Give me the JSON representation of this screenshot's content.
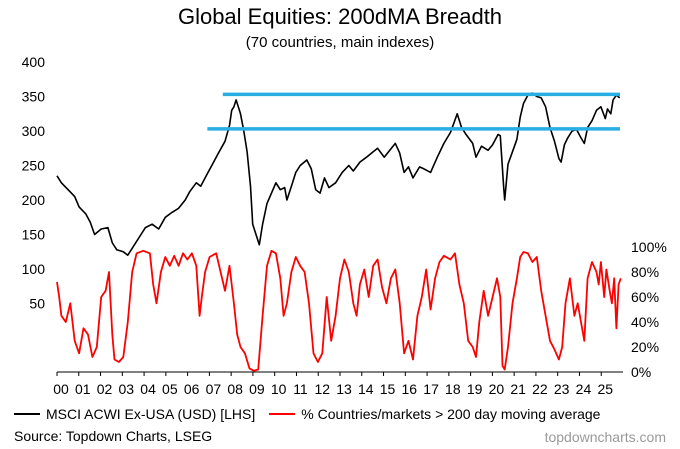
{
  "header": {
    "title": "Global Equities: 200dMA Breadth",
    "subtitle": "(70 countries, main indexes)"
  },
  "footer": {
    "source": "Source: Topdown Charts, LSEG",
    "brand": "topdowncharts.com"
  },
  "colors": {
    "acwi": "#000000",
    "breadth": "#ff0000",
    "bands": "#29aee3"
  },
  "chart_data": {
    "type": "line",
    "title": "Global Equities: 200dMA Breadth",
    "subtitle": "(70 countries, main indexes)",
    "x_ticks": [
      "00",
      "01",
      "02",
      "03",
      "04",
      "05",
      "06",
      "07",
      "08",
      "09",
      "10",
      "11",
      "12",
      "13",
      "14",
      "15",
      "16",
      "17",
      "18",
      "19",
      "20",
      "21",
      "22",
      "23",
      "24",
      "25"
    ],
    "x_range": [
      2000,
      2025.6
    ],
    "y_left": {
      "ticks": [
        "400",
        "350",
        "300",
        "250",
        "200",
        "150",
        "100",
        "50"
      ],
      "range": [
        0,
        400
      ]
    },
    "y_right": {
      "ticks": [
        "100%",
        "80%",
        "60%",
        "40%",
        "20%",
        "0%"
      ],
      "range": [
        0,
        100
      ]
    },
    "series": [
      {
        "name": "MSCI ACWI Ex-USA (USD) [LHS]",
        "axis": "left",
        "color": "#000000",
        "points": [
          [
            2000.0,
            235
          ],
          [
            2000.2,
            225
          ],
          [
            2000.5,
            215
          ],
          [
            2000.8,
            205
          ],
          [
            2001.0,
            190
          ],
          [
            2001.3,
            180
          ],
          [
            2001.5,
            168
          ],
          [
            2001.7,
            150
          ],
          [
            2002.0,
            158
          ],
          [
            2002.3,
            160
          ],
          [
            2002.5,
            138
          ],
          [
            2002.7,
            128
          ],
          [
            2003.0,
            125
          ],
          [
            2003.2,
            120
          ],
          [
            2003.5,
            135
          ],
          [
            2003.8,
            150
          ],
          [
            2004.0,
            160
          ],
          [
            2004.3,
            165
          ],
          [
            2004.6,
            158
          ],
          [
            2004.9,
            175
          ],
          [
            2005.2,
            182
          ],
          [
            2005.5,
            188
          ],
          [
            2005.8,
            200
          ],
          [
            2006.0,
            212
          ],
          [
            2006.3,
            225
          ],
          [
            2006.5,
            220
          ],
          [
            2006.8,
            238
          ],
          [
            2007.0,
            250
          ],
          [
            2007.3,
            268
          ],
          [
            2007.6,
            285
          ],
          [
            2007.8,
            308
          ],
          [
            2007.9,
            330
          ],
          [
            2008.0,
            335
          ],
          [
            2008.1,
            345
          ],
          [
            2008.2,
            335
          ],
          [
            2008.3,
            325
          ],
          [
            2008.45,
            300
          ],
          [
            2008.6,
            270
          ],
          [
            2008.75,
            220
          ],
          [
            2008.85,
            165
          ],
          [
            2009.0,
            150
          ],
          [
            2009.15,
            135
          ],
          [
            2009.3,
            165
          ],
          [
            2009.5,
            195
          ],
          [
            2009.7,
            210
          ],
          [
            2009.9,
            225
          ],
          [
            2010.1,
            215
          ],
          [
            2010.3,
            218
          ],
          [
            2010.4,
            200
          ],
          [
            2010.6,
            220
          ],
          [
            2010.8,
            240
          ],
          [
            2011.0,
            250
          ],
          [
            2011.3,
            258
          ],
          [
            2011.5,
            245
          ],
          [
            2011.7,
            215
          ],
          [
            2011.9,
            210
          ],
          [
            2012.1,
            232
          ],
          [
            2012.3,
            218
          ],
          [
            2012.6,
            225
          ],
          [
            2012.9,
            240
          ],
          [
            2013.2,
            250
          ],
          [
            2013.4,
            242
          ],
          [
            2013.7,
            255
          ],
          [
            2014.0,
            262
          ],
          [
            2014.3,
            270
          ],
          [
            2014.5,
            275
          ],
          [
            2014.8,
            262
          ],
          [
            2015.0,
            270
          ],
          [
            2015.3,
            282
          ],
          [
            2015.5,
            268
          ],
          [
            2015.7,
            240
          ],
          [
            2015.9,
            248
          ],
          [
            2016.1,
            232
          ],
          [
            2016.4,
            248
          ],
          [
            2016.6,
            245
          ],
          [
            2016.9,
            240
          ],
          [
            2017.2,
            262
          ],
          [
            2017.5,
            282
          ],
          [
            2017.8,
            298
          ],
          [
            2018.0,
            316
          ],
          [
            2018.1,
            325
          ],
          [
            2018.3,
            305
          ],
          [
            2018.5,
            295
          ],
          [
            2018.8,
            282
          ],
          [
            2018.95,
            262
          ],
          [
            2019.2,
            278
          ],
          [
            2019.5,
            272
          ],
          [
            2019.7,
            280
          ],
          [
            2019.95,
            295
          ],
          [
            2020.05,
            293
          ],
          [
            2020.2,
            220
          ],
          [
            2020.25,
            200
          ],
          [
            2020.4,
            252
          ],
          [
            2020.6,
            270
          ],
          [
            2020.8,
            288
          ],
          [
            2020.95,
            320
          ],
          [
            2021.1,
            340
          ],
          [
            2021.3,
            352
          ],
          [
            2021.5,
            355
          ],
          [
            2021.7,
            350
          ],
          [
            2021.9,
            348
          ],
          [
            2022.1,
            335
          ],
          [
            2022.3,
            305
          ],
          [
            2022.5,
            285
          ],
          [
            2022.7,
            260
          ],
          [
            2022.8,
            255
          ],
          [
            2022.95,
            280
          ],
          [
            2023.1,
            290
          ],
          [
            2023.3,
            300
          ],
          [
            2023.5,
            302
          ],
          [
            2023.7,
            290
          ],
          [
            2023.85,
            282
          ],
          [
            2024.0,
            305
          ],
          [
            2024.2,
            315
          ],
          [
            2024.4,
            330
          ],
          [
            2024.6,
            335
          ],
          [
            2024.8,
            318
          ],
          [
            2024.9,
            332
          ],
          [
            2025.05,
            325
          ],
          [
            2025.15,
            345
          ],
          [
            2025.3,
            352
          ],
          [
            2025.45,
            348
          ]
        ]
      },
      {
        "name": "% Countries/markets > 200 day moving average",
        "axis": "right",
        "color": "#ff0000",
        "points": [
          [
            2000.0,
            72
          ],
          [
            2000.1,
            60
          ],
          [
            2000.2,
            45
          ],
          [
            2000.4,
            40
          ],
          [
            2000.6,
            55
          ],
          [
            2000.8,
            25
          ],
          [
            2001.0,
            15
          ],
          [
            2001.2,
            35
          ],
          [
            2001.4,
            30
          ],
          [
            2001.6,
            12
          ],
          [
            2001.8,
            20
          ],
          [
            2002.0,
            60
          ],
          [
            2002.2,
            65
          ],
          [
            2002.35,
            80
          ],
          [
            2002.5,
            30
          ],
          [
            2002.6,
            10
          ],
          [
            2002.8,
            8
          ],
          [
            2003.0,
            12
          ],
          [
            2003.2,
            40
          ],
          [
            2003.4,
            80
          ],
          [
            2003.6,
            95
          ],
          [
            2003.9,
            97
          ],
          [
            2004.2,
            95
          ],
          [
            2004.35,
            70
          ],
          [
            2004.5,
            55
          ],
          [
            2004.7,
            80
          ],
          [
            2004.9,
            92
          ],
          [
            2005.1,
            85
          ],
          [
            2005.3,
            93
          ],
          [
            2005.5,
            85
          ],
          [
            2005.7,
            95
          ],
          [
            2005.9,
            90
          ],
          [
            2006.1,
            95
          ],
          [
            2006.3,
            85
          ],
          [
            2006.45,
            45
          ],
          [
            2006.55,
            60
          ],
          [
            2006.7,
            80
          ],
          [
            2006.9,
            92
          ],
          [
            2007.2,
            95
          ],
          [
            2007.4,
            80
          ],
          [
            2007.6,
            65
          ],
          [
            2007.8,
            85
          ],
          [
            2008.0,
            55
          ],
          [
            2008.15,
            30
          ],
          [
            2008.3,
            20
          ],
          [
            2008.5,
            15
          ],
          [
            2008.7,
            3
          ],
          [
            2008.9,
            1
          ],
          [
            2009.1,
            2
          ],
          [
            2009.3,
            45
          ],
          [
            2009.5,
            85
          ],
          [
            2009.7,
            97
          ],
          [
            2009.9,
            95
          ],
          [
            2010.1,
            75
          ],
          [
            2010.25,
            45
          ],
          [
            2010.4,
            55
          ],
          [
            2010.6,
            80
          ],
          [
            2010.8,
            92
          ],
          [
            2011.0,
            85
          ],
          [
            2011.2,
            80
          ],
          [
            2011.4,
            55
          ],
          [
            2011.6,
            15
          ],
          [
            2011.8,
            8
          ],
          [
            2012.0,
            15
          ],
          [
            2012.2,
            60
          ],
          [
            2012.4,
            25
          ],
          [
            2012.6,
            45
          ],
          [
            2012.8,
            75
          ],
          [
            2013.0,
            90
          ],
          [
            2013.2,
            80
          ],
          [
            2013.4,
            55
          ],
          [
            2013.55,
            45
          ],
          [
            2013.7,
            70
          ],
          [
            2013.9,
            82
          ],
          [
            2014.1,
            60
          ],
          [
            2014.3,
            85
          ],
          [
            2014.5,
            90
          ],
          [
            2014.7,
            68
          ],
          [
            2014.9,
            55
          ],
          [
            2015.1,
            75
          ],
          [
            2015.3,
            82
          ],
          [
            2015.5,
            55
          ],
          [
            2015.7,
            15
          ],
          [
            2015.9,
            25
          ],
          [
            2016.1,
            10
          ],
          [
            2016.3,
            45
          ],
          [
            2016.5,
            60
          ],
          [
            2016.7,
            82
          ],
          [
            2016.9,
            50
          ],
          [
            2017.1,
            75
          ],
          [
            2017.3,
            88
          ],
          [
            2017.5,
            93
          ],
          [
            2017.8,
            90
          ],
          [
            2018.0,
            95
          ],
          [
            2018.2,
            70
          ],
          [
            2018.4,
            55
          ],
          [
            2018.6,
            25
          ],
          [
            2018.8,
            20
          ],
          [
            2018.95,
            12
          ],
          [
            2019.1,
            40
          ],
          [
            2019.3,
            65
          ],
          [
            2019.5,
            45
          ],
          [
            2019.7,
            60
          ],
          [
            2019.9,
            75
          ],
          [
            2020.05,
            60
          ],
          [
            2020.15,
            5
          ],
          [
            2020.25,
            2
          ],
          [
            2020.4,
            20
          ],
          [
            2020.6,
            55
          ],
          [
            2020.8,
            75
          ],
          [
            2020.95,
            92
          ],
          [
            2021.1,
            96
          ],
          [
            2021.3,
            95
          ],
          [
            2021.5,
            88
          ],
          [
            2021.7,
            92
          ],
          [
            2021.9,
            65
          ],
          [
            2022.1,
            45
          ],
          [
            2022.3,
            25
          ],
          [
            2022.5,
            18
          ],
          [
            2022.7,
            10
          ],
          [
            2022.85,
            20
          ],
          [
            2023.0,
            55
          ],
          [
            2023.2,
            75
          ],
          [
            2023.4,
            45
          ],
          [
            2023.55,
            55
          ],
          [
            2023.7,
            40
          ],
          [
            2023.85,
            25
          ],
          [
            2024.0,
            75
          ],
          [
            2024.2,
            88
          ],
          [
            2024.4,
            80
          ],
          [
            2024.5,
            70
          ],
          [
            2024.6,
            88
          ],
          [
            2024.75,
            60
          ],
          [
            2024.85,
            82
          ],
          [
            2025.0,
            65
          ],
          [
            2025.1,
            55
          ],
          [
            2025.2,
            75
          ],
          [
            2025.3,
            35
          ],
          [
            2025.4,
            70
          ],
          [
            2025.5,
            75
          ]
        ]
      }
    ],
    "bands": [
      {
        "y": 353,
        "x_start": 2007.5,
        "x_end": 2025.6
      },
      {
        "y": 303,
        "x_start": 2006.8,
        "x_end": 2025.6
      }
    ],
    "legend_placement": "bottom",
    "grid": false
  }
}
